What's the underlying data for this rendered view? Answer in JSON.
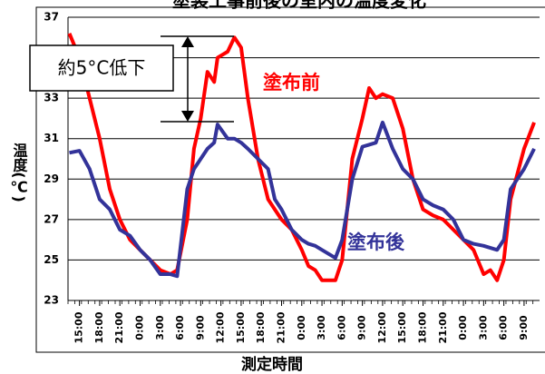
{
  "chart_data": {
    "type": "line",
    "title": "塗装工事前後の室内の温度変化",
    "ylabel": "温度(℃)",
    "xlabel": "測定時間",
    "annotations": {
      "box": "約5°C低下"
    },
    "xlim": [
      -1.7,
      68.3
    ],
    "ylim": [
      23,
      37
    ],
    "yticks": [
      23,
      25,
      27,
      29,
      31,
      33,
      35,
      37
    ],
    "xticks": [
      {
        "value": 0,
        "label": "15:00"
      },
      {
        "value": 3,
        "label": "18:00"
      },
      {
        "value": 6,
        "label": "21:00"
      },
      {
        "value": 9,
        "label": "0:00"
      },
      {
        "value": 12,
        "label": "3:00"
      },
      {
        "value": 15,
        "label": "6:00"
      },
      {
        "value": 18,
        "label": "9:00"
      },
      {
        "value": 21,
        "label": "12:00"
      },
      {
        "value": 24,
        "label": "15:00"
      },
      {
        "value": 27,
        "label": "18:00"
      },
      {
        "value": 30,
        "label": "21:00"
      },
      {
        "value": 33,
        "label": "0:00"
      },
      {
        "value": 36,
        "label": "3:00"
      },
      {
        "value": 39,
        "label": "6:00"
      },
      {
        "value": 42,
        "label": "9:00"
      },
      {
        "value": 45,
        "label": "12:00"
      },
      {
        "value": 48,
        "label": "15:00"
      },
      {
        "value": 51,
        "label": "18:00"
      },
      {
        "value": 54,
        "label": "21:00"
      },
      {
        "value": 57,
        "label": "0:00"
      },
      {
        "value": 60,
        "label": "3:00"
      },
      {
        "value": 63,
        "label": "6:00"
      },
      {
        "value": 66,
        "label": "9:00"
      }
    ],
    "grid": true,
    "x": [
      -1.5,
      0,
      1.5,
      3,
      4.5,
      6,
      7.5,
      9,
      10.5,
      12,
      13.5,
      14.5,
      16,
      17,
      18,
      19,
      20,
      20.5,
      22,
      23,
      24,
      25,
      26.5,
      28,
      29,
      30,
      31.5,
      33,
      34,
      35,
      36,
      38,
      39,
      40.5,
      42,
      43,
      44,
      45,
      46.5,
      48,
      49.5,
      51,
      52.5,
      54,
      55.5,
      57,
      58.5,
      60,
      61,
      62,
      63,
      64,
      66,
      67.5
    ],
    "series": [
      {
        "name": "塗布前",
        "color": "#ff0000",
        "values": [
          36.2,
          35,
          33,
          31,
          28.5,
          27,
          26,
          25.5,
          25,
          24.5,
          24.3,
          24.5,
          27,
          30.5,
          32,
          34.3,
          33.8,
          35,
          35.3,
          36,
          35.5,
          33,
          30,
          28,
          27.5,
          27,
          26.5,
          25.5,
          24.7,
          24.5,
          24,
          24,
          25,
          30,
          32,
          33.5,
          33,
          33.2,
          33,
          31.5,
          29,
          27.5,
          27.2,
          27,
          26.5,
          26,
          25.5,
          24.3,
          24.5,
          24,
          25,
          28,
          30.5,
          31.8
        ]
      },
      {
        "name": "塗布後",
        "color": "#333399",
        "values": [
          30.3,
          30.4,
          29.5,
          28,
          27.5,
          26.5,
          26.2,
          25.5,
          25,
          24.3,
          24.3,
          24.2,
          28.5,
          29.5,
          30,
          30.5,
          30.8,
          31.7,
          31,
          31,
          30.8,
          30.5,
          30,
          29.5,
          28,
          27.5,
          26.5,
          26,
          25.8,
          25.7,
          25.5,
          25.1,
          26,
          29,
          30.6,
          30.7,
          30.8,
          31.8,
          30.5,
          29.5,
          29,
          28,
          27.7,
          27.5,
          27,
          26,
          25.8,
          25.7,
          25.6,
          25.5,
          26,
          28.5,
          29.5,
          30.5
        ]
      }
    ]
  }
}
